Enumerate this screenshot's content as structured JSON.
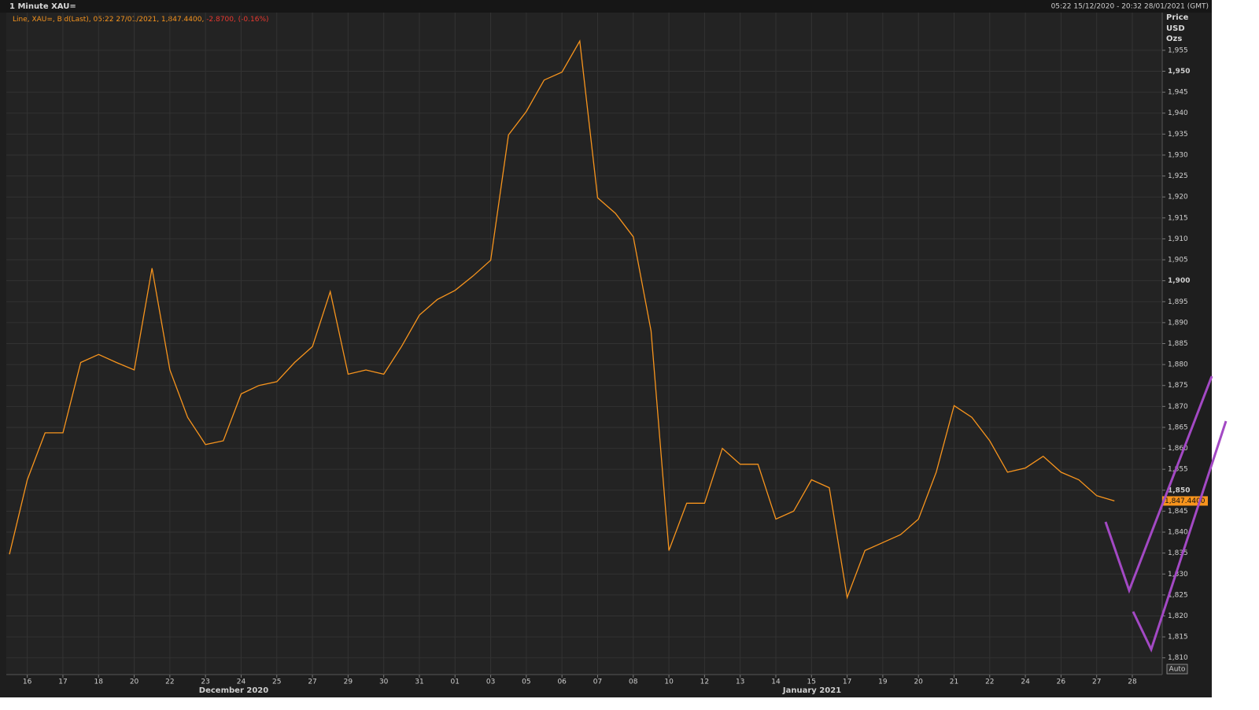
{
  "header": {
    "title": "1 Minute XAU=",
    "range": "05:22 15/12/2020 - 20:32 28/01/2021 (GMT)"
  },
  "chart_data": {
    "type": "line",
    "legend_text": "Line, XAU=, Bid(Last), 05:22 27/01/2021, 1,847.4400,",
    "legend_change": "-2.8700, (-0.16%)",
    "axis_units": [
      "Price",
      "USD",
      "Ozs"
    ],
    "last_price_label": "1,847.4400",
    "auto_button": "Auto",
    "months": [
      "December 2020",
      "January 2021"
    ],
    "categories": [
      null,
      "16",
      null,
      "17",
      null,
      "18",
      null,
      "20",
      null,
      "22",
      null,
      "23",
      null,
      "24",
      null,
      "25",
      null,
      "27",
      null,
      "29",
      null,
      "30",
      null,
      "31",
      null,
      "01",
      null,
      "03",
      null,
      "05",
      null,
      "06",
      null,
      "07",
      null,
      "08",
      null,
      "10",
      null,
      "12",
      null,
      "13",
      null,
      "14",
      null,
      "15",
      null,
      "17",
      null,
      "19",
      null,
      "20",
      null,
      "21",
      null,
      "22",
      null,
      "24",
      null,
      "26",
      null,
      "27",
      null,
      "28"
    ],
    "series": [
      {
        "name": "XAU=",
        "color": "#f7941d",
        "values": [
          1834.7,
          1852.5,
          1863.7,
          1863.7,
          1880.5,
          1882.4,
          1880.5,
          1878.7,
          1903,
          1878.7,
          1867.4,
          1860.9,
          1861.8,
          1873,
          1875,
          1875.9,
          1880.5,
          1884.3,
          1897.4,
          1877.7,
          1878.7,
          1877.7,
          1884.3,
          1891.8,
          1895.5,
          1897.7,
          1901.1,
          1904.9,
          1934.8,
          1940.4,
          1947.9,
          1949.8,
          1957.2,
          1919.8,
          1916.1,
          1910.5,
          1888,
          1835.6,
          1846.9,
          1846.9,
          1860,
          1856.2,
          1856.2,
          1843.1,
          1845,
          1852.5,
          1850.6,
          1824.4,
          1835.6,
          1837.5,
          1839.4,
          1843.1,
          1854.3,
          1870.2,
          1867.4,
          1861.8,
          1854.3,
          1855.3,
          1858.1,
          1854.3,
          1852.5,
          1848.7,
          1847.44,
          null
        ]
      }
    ],
    "ylim": [
      1806,
      1964
    ],
    "yticks": [
      {
        "value": 1810,
        "label": "1,810"
      },
      {
        "value": 1815,
        "label": "1,815"
      },
      {
        "value": 1820,
        "label": "1,820"
      },
      {
        "value": 1825,
        "label": "1,825"
      },
      {
        "value": 1830,
        "label": "1,830"
      },
      {
        "value": 1835,
        "label": "1,835"
      },
      {
        "value": 1840,
        "label": "1,840"
      },
      {
        "value": 1845,
        "label": "1,845"
      },
      {
        "value": 1850,
        "label": "1,850"
      },
      {
        "value": 1855,
        "label": "1,855"
      },
      {
        "value": 1860,
        "label": "1,860"
      },
      {
        "value": 1865,
        "label": "1,865"
      },
      {
        "value": 1870,
        "label": "1,870"
      },
      {
        "value": 1875,
        "label": "1,875"
      },
      {
        "value": 1880,
        "label": "1,880"
      },
      {
        "value": 1885,
        "label": "1,885"
      },
      {
        "value": 1890,
        "label": "1,890"
      },
      {
        "value": 1895,
        "label": "1,895"
      },
      {
        "value": 1900,
        "label": "1,900"
      },
      {
        "value": 1905,
        "label": "1,905"
      },
      {
        "value": 1910,
        "label": "1,910"
      },
      {
        "value": 1915,
        "label": "1,915"
      },
      {
        "value": 1920,
        "label": "1,920"
      },
      {
        "value": 1925,
        "label": "1,925"
      },
      {
        "value": 1930,
        "label": "1,930"
      },
      {
        "value": 1935,
        "label": "1,935"
      },
      {
        "value": 1940,
        "label": "1,940"
      },
      {
        "value": 1945,
        "label": "1,945"
      },
      {
        "value": 1950,
        "label": "1,950"
      },
      {
        "value": 1955,
        "label": "1,955"
      }
    ],
    "grid": true
  }
}
